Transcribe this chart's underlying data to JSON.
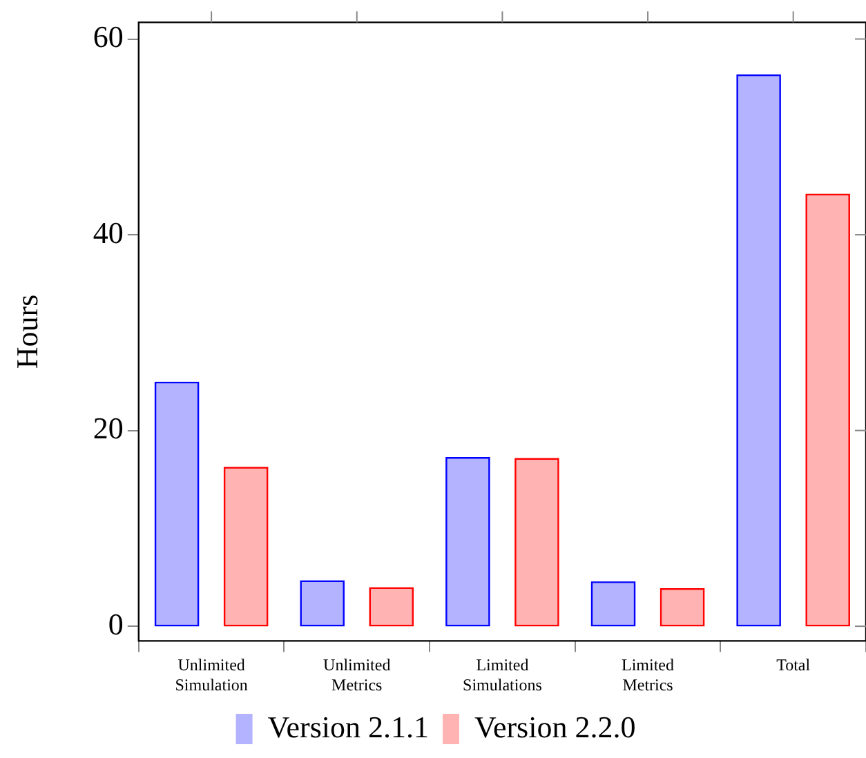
{
  "chart_data": {
    "type": "bar",
    "ylabel": "Hours",
    "categories": [
      "Unlimited Simulation",
      "Unlimited Metrics",
      "Limited Simulations",
      "Limited Metrics",
      "Total"
    ],
    "series": [
      {
        "name": "Version 2.1.1",
        "color": "#b3b3ff",
        "values": [
          24.9,
          4.6,
          17.2,
          4.5,
          56.3
        ]
      },
      {
        "name": "Version 2.2.0",
        "color": "#ffb3b3",
        "values": [
          16.2,
          3.9,
          17.1,
          3.8,
          44.1
        ]
      }
    ],
    "ylim": [
      -1.5,
      61.7
    ],
    "yticks": [
      0,
      20,
      40,
      60
    ],
    "grid": false,
    "legend": "bottom"
  }
}
